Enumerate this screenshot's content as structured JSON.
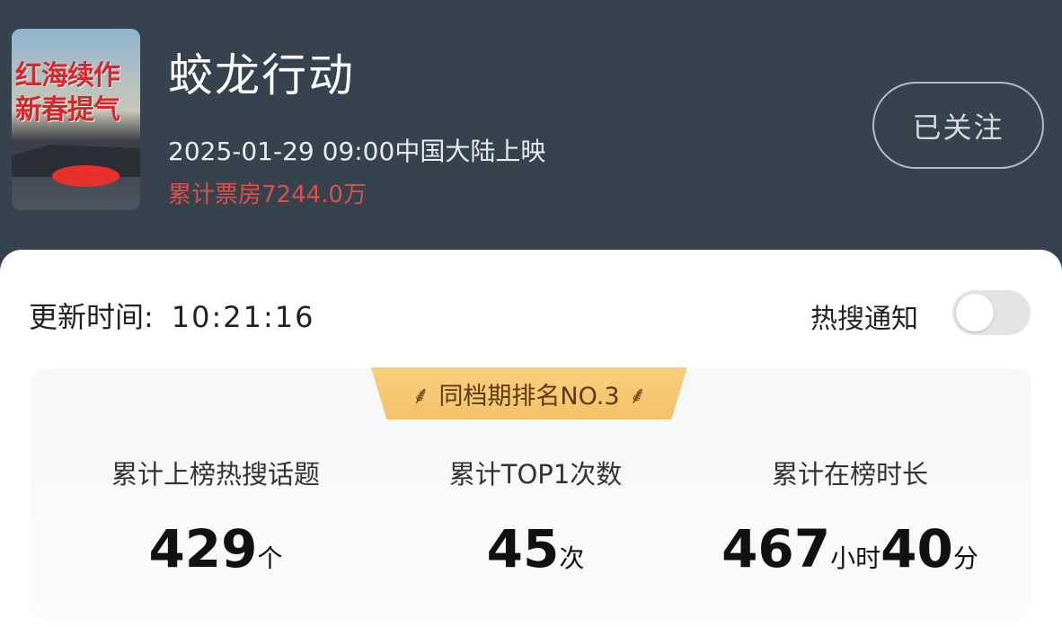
{
  "movie": {
    "poster_text": "红海续作 新春提气",
    "title": "蛟龙行动",
    "release": "2025-01-29 09:00中国大陆上映",
    "box_office": "累计票房7244.0万",
    "follow_label": "已关注"
  },
  "card": {
    "update_label": "更新时间:",
    "update_time": "10:21:16",
    "notify_label": "热搜通知",
    "notify_on": false,
    "rank_badge": "同档期排名NO.3",
    "stats": [
      {
        "label": "累计上榜热搜话题",
        "value": "429",
        "unit": "个"
      },
      {
        "label": "累计TOP1次数",
        "value": "45",
        "unit": "次"
      },
      {
        "label": "累计在榜时长",
        "value1": "467",
        "unit1": "小时",
        "value2": "40",
        "unit2": "分"
      }
    ]
  },
  "colors": {
    "header_bg": "#36434f",
    "box_office": "#d9504c",
    "badge": "#f6c871"
  }
}
